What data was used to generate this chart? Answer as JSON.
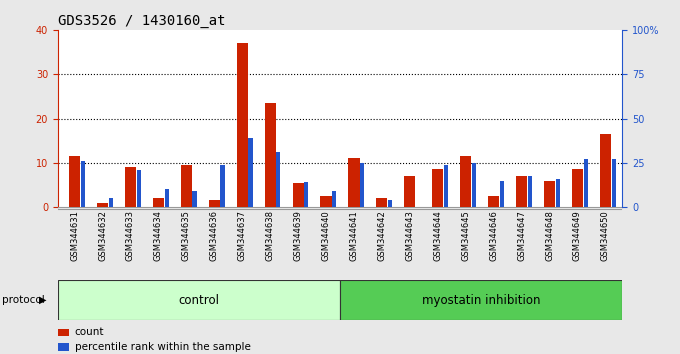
{
  "title": "GDS3526 / 1430160_at",
  "samples": [
    "GSM344631",
    "GSM344632",
    "GSM344633",
    "GSM344634",
    "GSM344635",
    "GSM344636",
    "GSM344637",
    "GSM344638",
    "GSM344639",
    "GSM344640",
    "GSM344641",
    "GSM344642",
    "GSM344643",
    "GSM344644",
    "GSM344645",
    "GSM344646",
    "GSM344647",
    "GSM344648",
    "GSM344649",
    "GSM344650"
  ],
  "count_values": [
    11.5,
    1.0,
    9.0,
    2.0,
    9.5,
    1.5,
    37.0,
    23.5,
    5.5,
    2.5,
    11.0,
    2.0,
    7.0,
    8.5,
    11.5,
    2.5,
    7.0,
    6.0,
    8.5,
    16.5
  ],
  "percentile_values": [
    26.0,
    5.0,
    21.0,
    10.0,
    9.0,
    24.0,
    39.0,
    31.0,
    14.0,
    9.0,
    25.0,
    4.0,
    0.0,
    24.0,
    25.0,
    15.0,
    17.5,
    16.0,
    27.0,
    27.0
  ],
  "n_control": 10,
  "n_myostatin": 10,
  "count_color": "#cc2200",
  "percentile_color": "#2255cc",
  "ylim_left": [
    0,
    40
  ],
  "ylim_right": [
    0,
    100
  ],
  "yticks_left": [
    0,
    10,
    20,
    30,
    40
  ],
  "yticks_right": [
    0,
    25,
    50,
    75,
    100
  ],
  "ytick_labels_right": [
    "0",
    "25",
    "50",
    "75",
    "100%"
  ],
  "red_bar_width": 0.4,
  "blue_bar_width": 0.15,
  "bg_color": "#e8e8e8",
  "plot_bg": "#ffffff",
  "control_bg": "#ccffcc",
  "myostatin_bg": "#55cc55",
  "protocol_label": "protocol",
  "control_label": "control",
  "myostatin_label": "myostatin inhibition",
  "legend_count": "count",
  "legend_percentile": "percentile rank within the sample",
  "title_fontsize": 10,
  "tick_fontsize": 7,
  "label_fontsize": 7
}
